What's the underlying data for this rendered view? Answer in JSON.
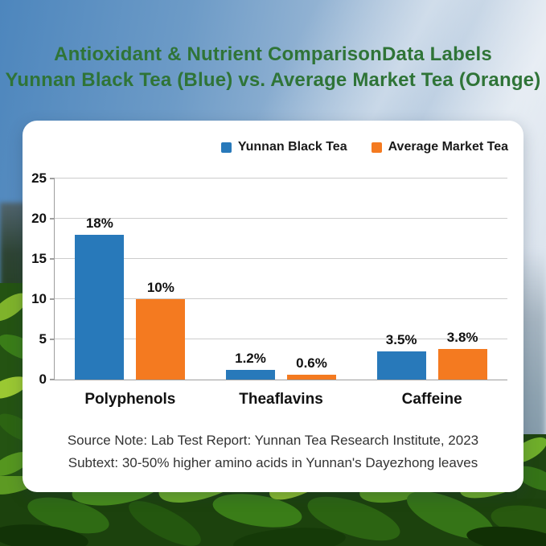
{
  "page": {
    "title_line1": "Antioxidant & Nutrient ComparisonData Labels",
    "title_line2": "Yunnan Black Tea (Blue) vs. Average Market Tea (Orange)",
    "title_color": "#2f7437"
  },
  "chart_data": {
    "type": "bar",
    "categories": [
      "Polyphenols",
      "Theaflavins",
      "Caffeine"
    ],
    "series": [
      {
        "name": "Yunnan Black Tea",
        "color": "#2879ba",
        "values": [
          18,
          1.2,
          3.5
        ],
        "labels": [
          "18%",
          "1.2%",
          "3.5%"
        ]
      },
      {
        "name": "Average Market Tea",
        "color": "#f47a20",
        "values": [
          10,
          0.6,
          3.8
        ],
        "labels": [
          "10%",
          "0.6%",
          "3.8%"
        ]
      }
    ],
    "ylim": [
      0,
      25
    ],
    "yticks": [
      0,
      5,
      10,
      15,
      20,
      25
    ],
    "grid": true,
    "legend_position": "top-right",
    "xlabel": "",
    "ylabel": ""
  },
  "footer": {
    "line1": "Source Note: Lab Test Report: Yunnan Tea Research Institute, 2023",
    "line2": "Subtext: 30-50% higher amino acids in Yunnan's Dayezhong leaves"
  }
}
